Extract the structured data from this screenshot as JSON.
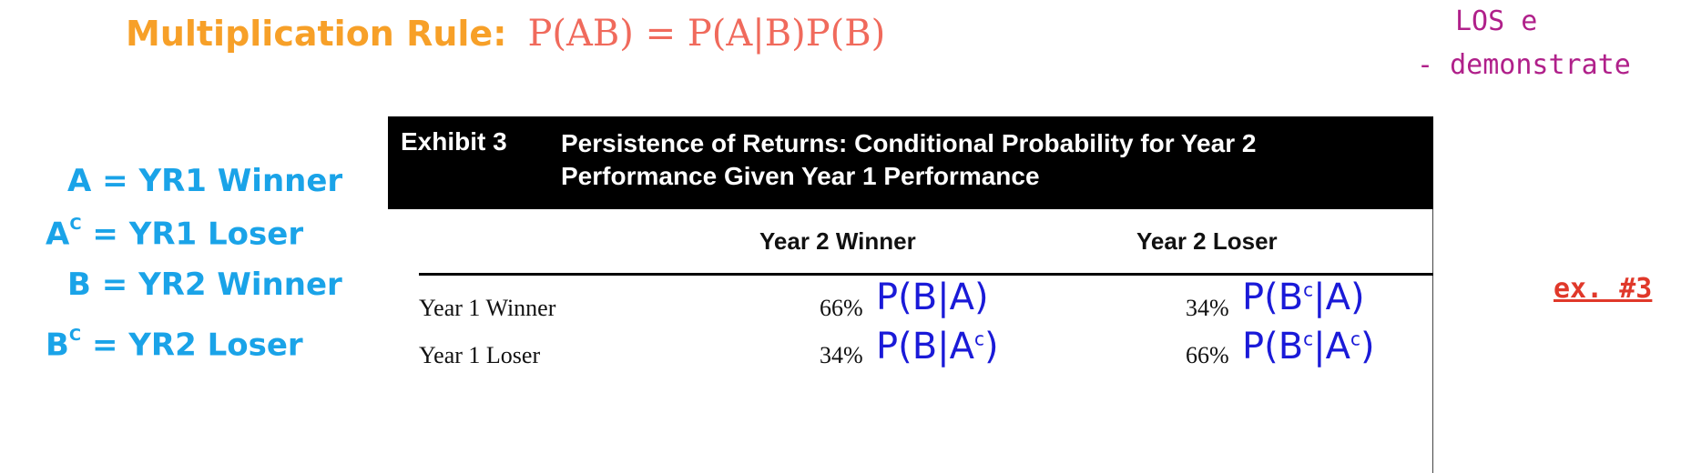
{
  "title": {
    "label": "Multiplication Rule:",
    "formula": "P(AB) = P(A|B)P(B)"
  },
  "los": {
    "line1": "LOS e",
    "line2": "- demonstrate"
  },
  "definitions": [
    {
      "lhs": "A",
      "sup": "",
      "rhs": " = YR1 Winner"
    },
    {
      "lhs": "A",
      "sup": "C",
      "rhs": " = YR1 Loser"
    },
    {
      "lhs": "B",
      "sup": "",
      "rhs": " = YR2 Winner"
    },
    {
      "lhs": "B",
      "sup": "C",
      "rhs": " = YR2 Loser"
    }
  ],
  "exhibit": {
    "number": "Exhibit 3",
    "title": "Persistence of Returns: Conditional Probability for Year 2 Performance Given Year 1 Performance",
    "columns": [
      "Year 2 Winner",
      "Year 2 Loser"
    ],
    "rows": [
      {
        "label": "Year 1 Winner",
        "values": [
          "66%",
          "34%"
        ]
      },
      {
        "label": "Year 1 Loser",
        "values": [
          "34%",
          "66%"
        ]
      }
    ]
  },
  "annotations": {
    "r1c1": "P(B|A)",
    "r1c2_a": "P(B",
    "r1c2_sup": "c",
    "r1c2_b": "|A)",
    "r2c1_a": "P(B|A",
    "r2c1_sup": "c",
    "r2c1_b": ")",
    "r2c2_a": "P(B",
    "r2c2_sup1": "c",
    "r2c2_b": "|A",
    "r2c2_sup2": "c",
    "r2c2_c": ")"
  },
  "example_label": "ex. #3",
  "colors": {
    "rule_label": "#f7a028",
    "formula": "#f06a5c",
    "los": "#b0208a",
    "definitions": "#1aa3e8",
    "handwriting": "#1a1ad8",
    "example": "#e0382a"
  }
}
